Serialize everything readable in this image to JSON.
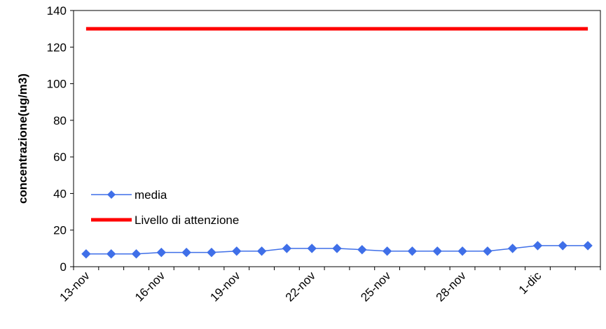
{
  "chart_data": {
    "type": "line",
    "title": "",
    "xlabel": "",
    "ylabel": "concentrazione(ug/m3)",
    "ylim": [
      0,
      140
    ],
    "yticks": [
      0,
      20,
      40,
      60,
      80,
      100,
      120,
      140
    ],
    "x": [
      "13-nov",
      "14-nov",
      "15-nov",
      "16-nov",
      "17-nov",
      "18-nov",
      "19-nov",
      "20-nov",
      "21-nov",
      "22-nov",
      "23-nov",
      "24-nov",
      "25-nov",
      "26-nov",
      "27-nov",
      "28-nov",
      "29-nov",
      "30-nov",
      "1-dic",
      "2-dic",
      "3-dic"
    ],
    "x_tick_labels": [
      "13-nov",
      "16-nov",
      "19-nov",
      "22-nov",
      "25-nov",
      "28-nov",
      "1-dic"
    ],
    "grid": false,
    "legend_position": "inside-left",
    "series": [
      {
        "name": "media",
        "color": "#3F6FE8",
        "marker": "diamond",
        "values": [
          7,
          7,
          7,
          7.8,
          7.8,
          7.8,
          8.5,
          8.5,
          10,
          10,
          10,
          9.3,
          8.5,
          8.5,
          8.5,
          8.5,
          8.5,
          10,
          11.5,
          11.5,
          11.5
        ]
      },
      {
        "name": "Livello di attenzione",
        "color": "#FF0000",
        "marker": "none",
        "values": [
          130,
          130,
          130,
          130,
          130,
          130,
          130,
          130,
          130,
          130,
          130,
          130,
          130,
          130,
          130,
          130,
          130,
          130,
          130,
          130,
          130
        ]
      }
    ]
  }
}
